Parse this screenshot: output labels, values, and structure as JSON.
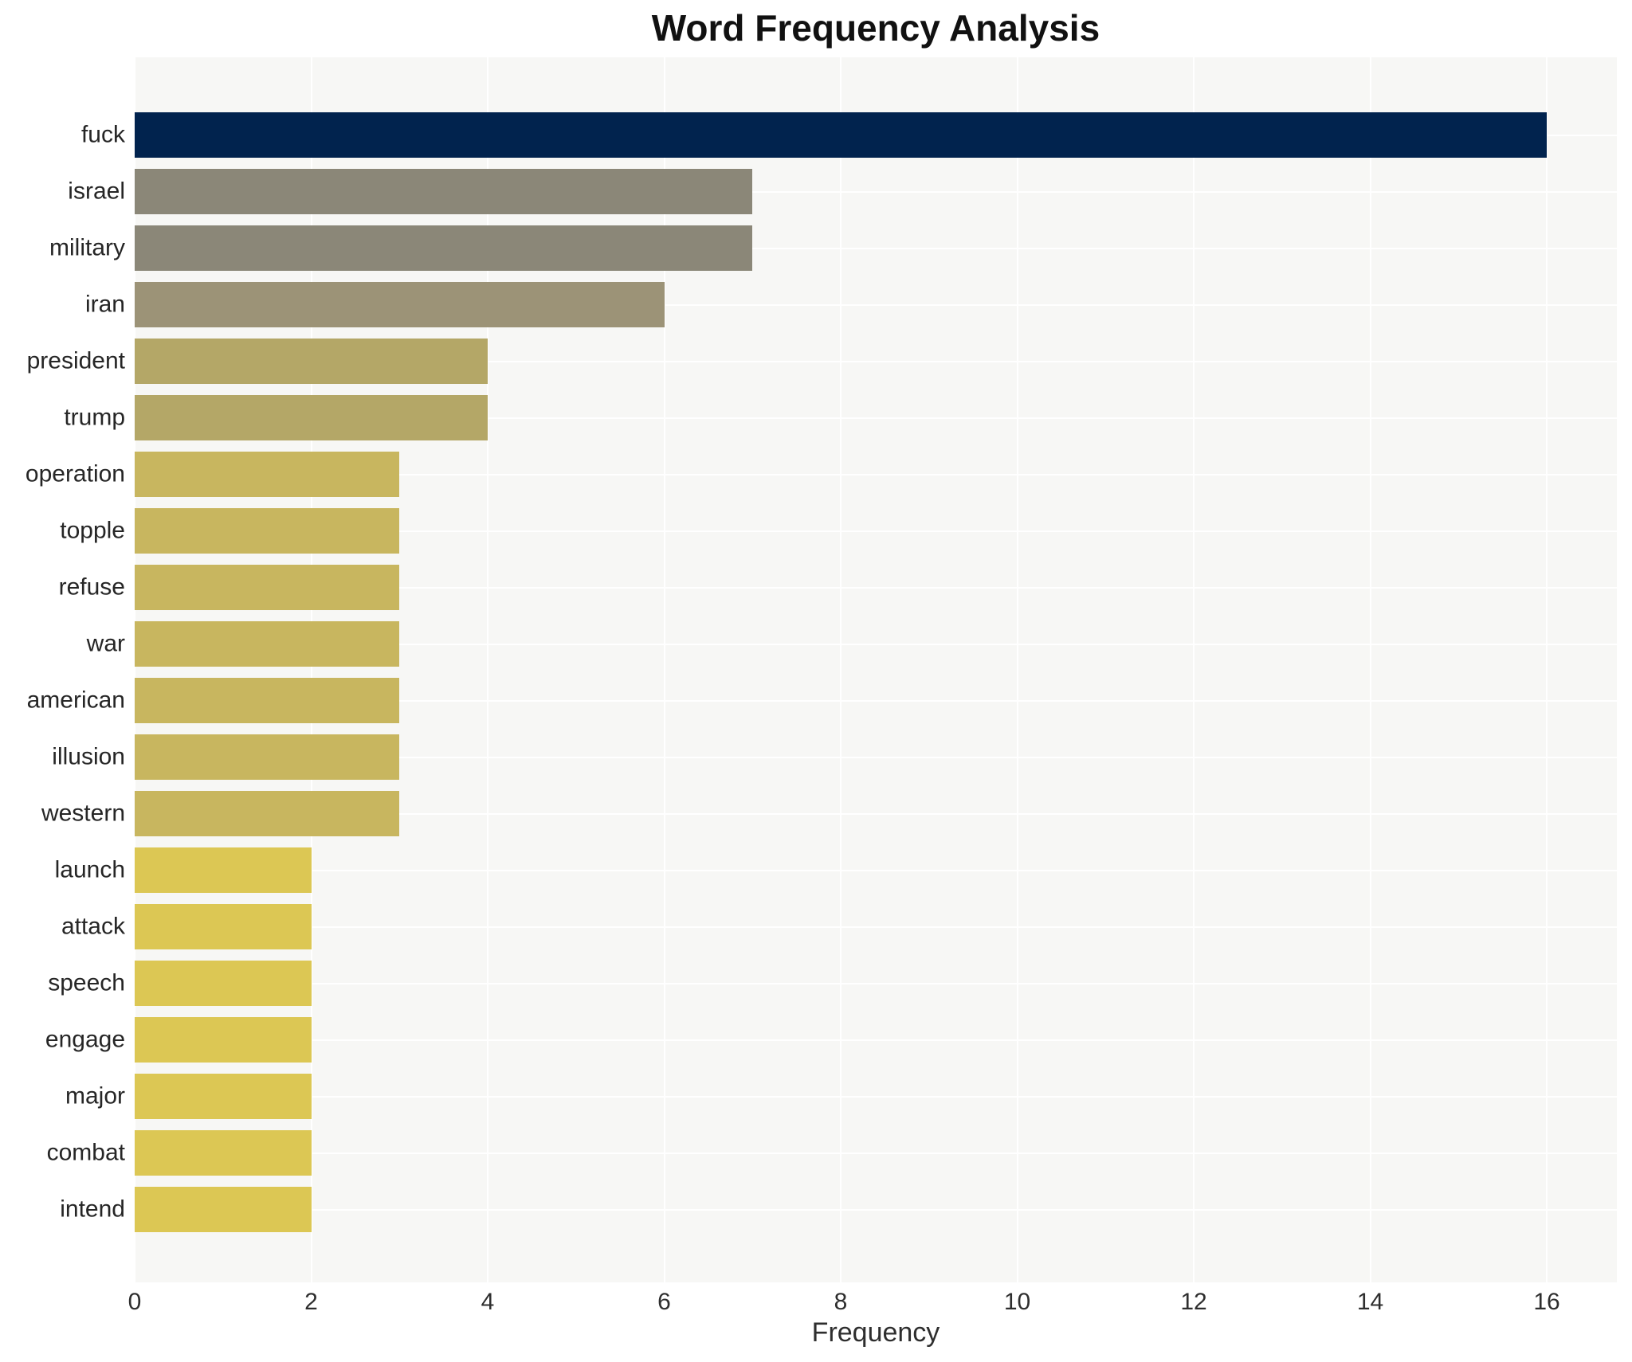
{
  "chart_data": {
    "type": "bar",
    "orientation": "horizontal",
    "title": "Word Frequency Analysis",
    "xlabel": "Frequency",
    "ylabel": "",
    "categories": [
      "fuck",
      "israel",
      "military",
      "iran",
      "president",
      "trump",
      "operation",
      "topple",
      "refuse",
      "war",
      "american",
      "illusion",
      "western",
      "launch",
      "attack",
      "speech",
      "engage",
      "major",
      "combat",
      "intend"
    ],
    "values": [
      16,
      7,
      7,
      6,
      4,
      4,
      3,
      3,
      3,
      3,
      3,
      3,
      3,
      2,
      2,
      2,
      2,
      2,
      2,
      2
    ],
    "bar_colors": [
      "#01234e",
      "#8b8778",
      "#8b8778",
      "#9c9377",
      "#b4a767",
      "#b4a767",
      "#c8b65f",
      "#c8b65f",
      "#c8b65f",
      "#c8b65f",
      "#c8b65f",
      "#c8b65f",
      "#c8b65f",
      "#dcc754",
      "#dcc754",
      "#dcc754",
      "#dcc754",
      "#dcc754",
      "#dcc754",
      "#dcc754"
    ],
    "xticks": [
      0,
      2,
      4,
      6,
      8,
      10,
      12,
      14,
      16
    ],
    "xlim": [
      0,
      16.8
    ],
    "grid": true,
    "legend_position": "none",
    "plot_background": "#f7f7f5",
    "grid_color": "#ffffff",
    "title_color": "#111111",
    "label_color": "#262626"
  }
}
